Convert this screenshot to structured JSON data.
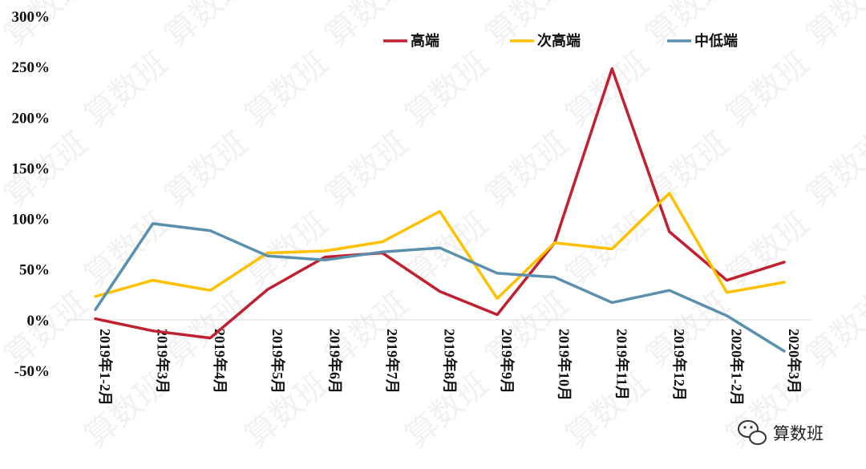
{
  "chart_data": {
    "type": "line",
    "categories": [
      "2019年1-2月",
      "2019年3月",
      "2019年4月",
      "2019年5月",
      "2019年6月",
      "2019年7月",
      "2019年8月",
      "2019年9月",
      "2019年10月",
      "2019年11月",
      "2019年12月",
      "2020年1-2月",
      "2020年3月"
    ],
    "yticks": [
      "300%",
      "250%",
      "200%",
      "150%",
      "100%",
      "50%",
      "0%",
      "-50%"
    ],
    "ylim": [
      -50,
      300
    ],
    "y_unit": "%",
    "legend_position": "top",
    "grid": false,
    "series": [
      {
        "name": "高端",
        "color": "#c0202f",
        "values": [
          1,
          -11,
          -18,
          30,
          62,
          66,
          28,
          5,
          76,
          248,
          87,
          39,
          57
        ]
      },
      {
        "name": "次高端",
        "color": "#ffc000",
        "values": [
          23,
          39,
          29,
          66,
          68,
          77,
          107,
          21,
          76,
          70,
          125,
          27,
          37
        ]
      },
      {
        "name": "中低端",
        "color": "#5b8fae",
        "values": [
          10,
          95,
          88,
          63,
          59,
          67,
          71,
          46,
          42,
          17,
          29,
          4,
          -31
        ]
      }
    ]
  },
  "watermark": {
    "text": "算数班",
    "brand_icon": "wechat-bubble-icon"
  }
}
